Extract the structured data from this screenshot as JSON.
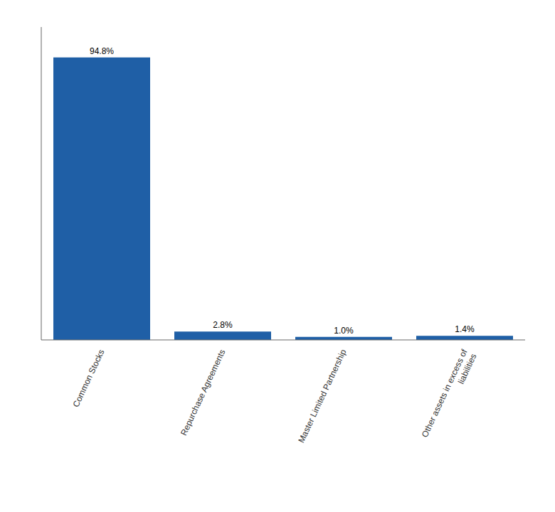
{
  "chart_data": {
    "type": "bar",
    "categories": [
      "Common Stocks",
      "Repurchase Agreements",
      "Master Limited Partnership",
      "Other assets in excess of\nliabilities"
    ],
    "values": [
      94.8,
      2.8,
      1.0,
      1.4
    ],
    "value_labels": [
      "94.8%",
      "2.8%",
      "1.0%",
      "1.4%"
    ],
    "color": "#1f5fa6",
    "ylim": [
      0,
      105
    ],
    "data_labels": true,
    "tick_labels": "x",
    "grid": false
  }
}
